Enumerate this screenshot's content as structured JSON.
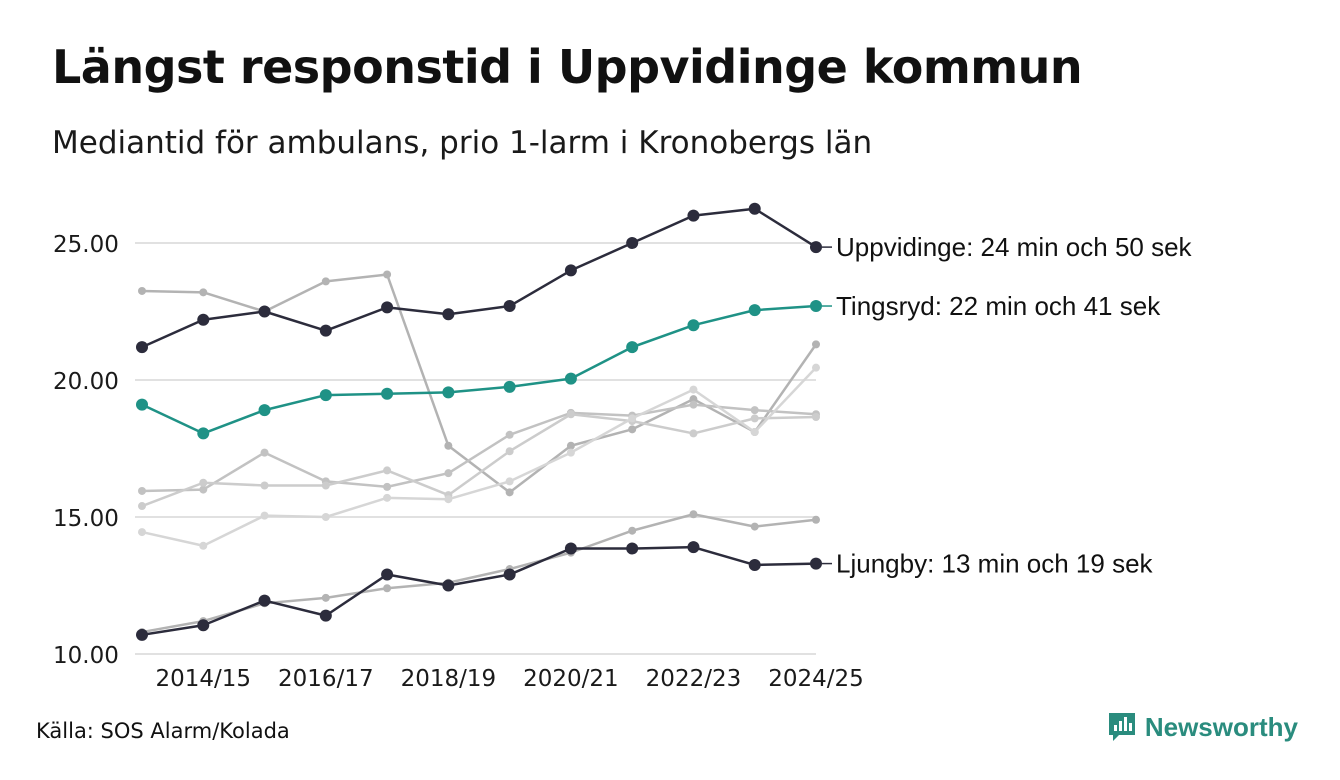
{
  "header": {
    "title": "Längst responstid i Uppvidinge kommun",
    "subtitle": "Mediantid för ambulans, prio 1-larm i Kronobergs län"
  },
  "footer": {
    "source": "Källa: SOS Alarm/Kolada",
    "brand": "Newsworthy"
  },
  "chart_data": {
    "type": "line",
    "title": "Längst responstid i Uppvidinge kommun",
    "subtitle": "Mediantid för ambulans, prio 1-larm i Kronobergs län",
    "xlabel": "",
    "ylabel": "",
    "x": [
      "2013/14",
      "2014/15",
      "2015/16",
      "2016/17",
      "2017/18",
      "2018/19",
      "2019/20",
      "2020/21",
      "2021/22",
      "2022/23",
      "2023/24",
      "2024/25"
    ],
    "x_tick_labels": [
      "2014/15",
      "2016/17",
      "2018/19",
      "2020/21",
      "2022/23",
      "2024/25"
    ],
    "y_ticks": [
      "10.00",
      "15.00",
      "20.00",
      "25.00"
    ],
    "ylim": [
      10,
      26.8
    ],
    "grid": true,
    "series": [
      {
        "name": "",
        "role": "background",
        "color": "#b3b3b3",
        "values": [
          23.25,
          23.2,
          22.5,
          23.6,
          23.85,
          17.6,
          15.9,
          17.6,
          18.2,
          19.3,
          18.1,
          21.3
        ]
      },
      {
        "name": "",
        "role": "background",
        "color": "#c2c2c2",
        "values": [
          15.95,
          16.0,
          17.35,
          16.3,
          16.1,
          16.6,
          18.0,
          18.8,
          18.7,
          19.1,
          18.9,
          18.75
        ]
      },
      {
        "name": "",
        "role": "background",
        "color": "#cccccc",
        "values": [
          15.4,
          16.25,
          16.15,
          16.15,
          16.7,
          15.8,
          17.4,
          18.75,
          18.5,
          18.05,
          18.6,
          18.65
        ]
      },
      {
        "name": "",
        "role": "background",
        "color": "#d6d6d6",
        "values": [
          14.45,
          13.95,
          15.05,
          15.0,
          15.7,
          15.65,
          16.3,
          17.35,
          18.6,
          19.65,
          18.1,
          20.45
        ]
      },
      {
        "name": "",
        "role": "background",
        "color": "#b3b3b3",
        "values": [
          10.8,
          11.2,
          11.85,
          12.05,
          12.4,
          12.6,
          13.1,
          13.7,
          14.5,
          15.1,
          14.65,
          14.9
        ]
      },
      {
        "name": "Uppvidinge",
        "role": "highlight",
        "color": "#2c2c3c",
        "label": "Uppvidinge: 24 min och 50 sek",
        "values": [
          21.2,
          22.2,
          22.5,
          21.8,
          22.65,
          22.4,
          22.7,
          24.0,
          25.0,
          26.0,
          26.25,
          24.85
        ]
      },
      {
        "name": "Tingsryd",
        "role": "highlight",
        "color": "#1f9286",
        "label": "Tingsryd: 22 min och 41 sek",
        "values": [
          19.1,
          18.05,
          18.9,
          19.45,
          19.5,
          19.55,
          19.75,
          20.05,
          21.2,
          22.0,
          22.55,
          22.7
        ]
      },
      {
        "name": "Ljungby",
        "role": "highlight",
        "color": "#2c2c3c",
        "label": "Ljungby: 13 min och 19 sek",
        "values": [
          10.7,
          11.05,
          11.95,
          11.4,
          12.9,
          12.5,
          12.9,
          13.85,
          13.85,
          13.9,
          13.25,
          13.3
        ]
      }
    ]
  },
  "colors": {
    "highlight_dark": "#2c2c3c",
    "highlight_teal": "#1f9286",
    "background_grey": "#b8b8b8",
    "brand": "#2a8c7e",
    "grid": "#e1e1e1"
  }
}
